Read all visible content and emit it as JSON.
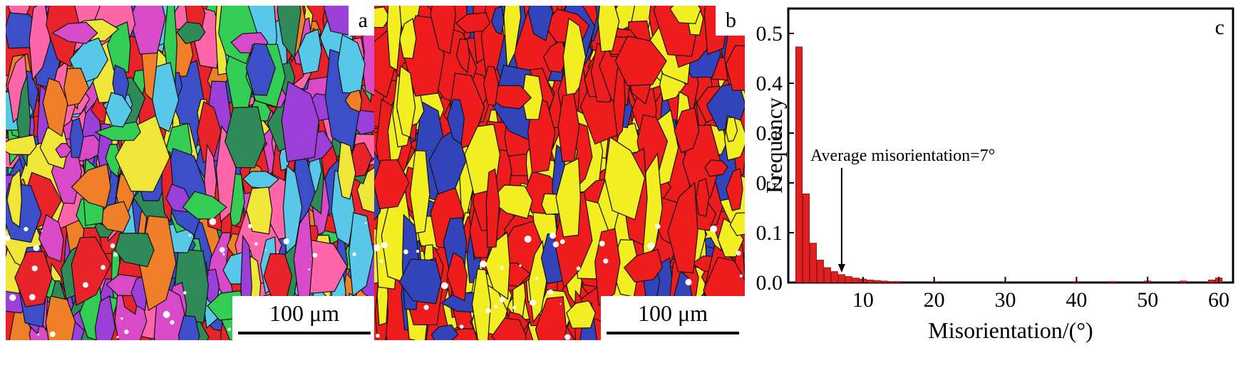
{
  "panels": {
    "a": {
      "letter": "a",
      "scale_label": "100 μm",
      "palette": [
        "#e8242a",
        "#3c4ec8",
        "#33cc55",
        "#d84ac8",
        "#9b3fd8",
        "#58c8e8",
        "#f0e63a",
        "#f07f2a",
        "#2e8b57",
        "#ff66aa"
      ]
    },
    "b": {
      "letter": "b",
      "scale_label": "100 μm",
      "palette": [
        "#ee1c1c",
        "#ee1c1c",
        "#ee1c1c",
        "#ee1c1c",
        "#f2ee22",
        "#f2ee22",
        "#3344bb"
      ]
    }
  },
  "chart_data": {
    "type": "bar",
    "panel_letter": "c",
    "xlabel": "Misorientation/(°)",
    "ylabel": "Frequency",
    "xlim": [
      0,
      62
    ],
    "ylim": [
      0,
      0.55
    ],
    "xticks": [
      10,
      20,
      30,
      40,
      50,
      60
    ],
    "xtick_labels": [
      "10",
      "20",
      "30",
      "40",
      "50",
      "60"
    ],
    "yticks": [
      0.0,
      0.1,
      0.2,
      0.3,
      0.4,
      0.5
    ],
    "ytick_labels": [
      "0.0",
      "0.1",
      "0.2",
      "0.3",
      "0.4",
      "0.5"
    ],
    "bar_color": "#e02020",
    "bins": [
      1,
      2,
      3,
      4,
      5,
      6,
      7,
      8,
      9,
      10,
      11,
      12,
      13,
      14,
      15,
      20,
      30,
      40,
      45,
      50,
      55,
      59,
      60
    ],
    "values": [
      0.473,
      0.178,
      0.079,
      0.045,
      0.03,
      0.022,
      0.016,
      0.012,
      0.009,
      0.007,
      0.005,
      0.004,
      0.003,
      0.002,
      0.002,
      0.001,
      0.001,
      0.002,
      0.002,
      0.003,
      0.003,
      0.005,
      0.009
    ],
    "annotation": {
      "text": "Average misorientation=7°",
      "x": 7,
      "y": 0.25
    }
  }
}
